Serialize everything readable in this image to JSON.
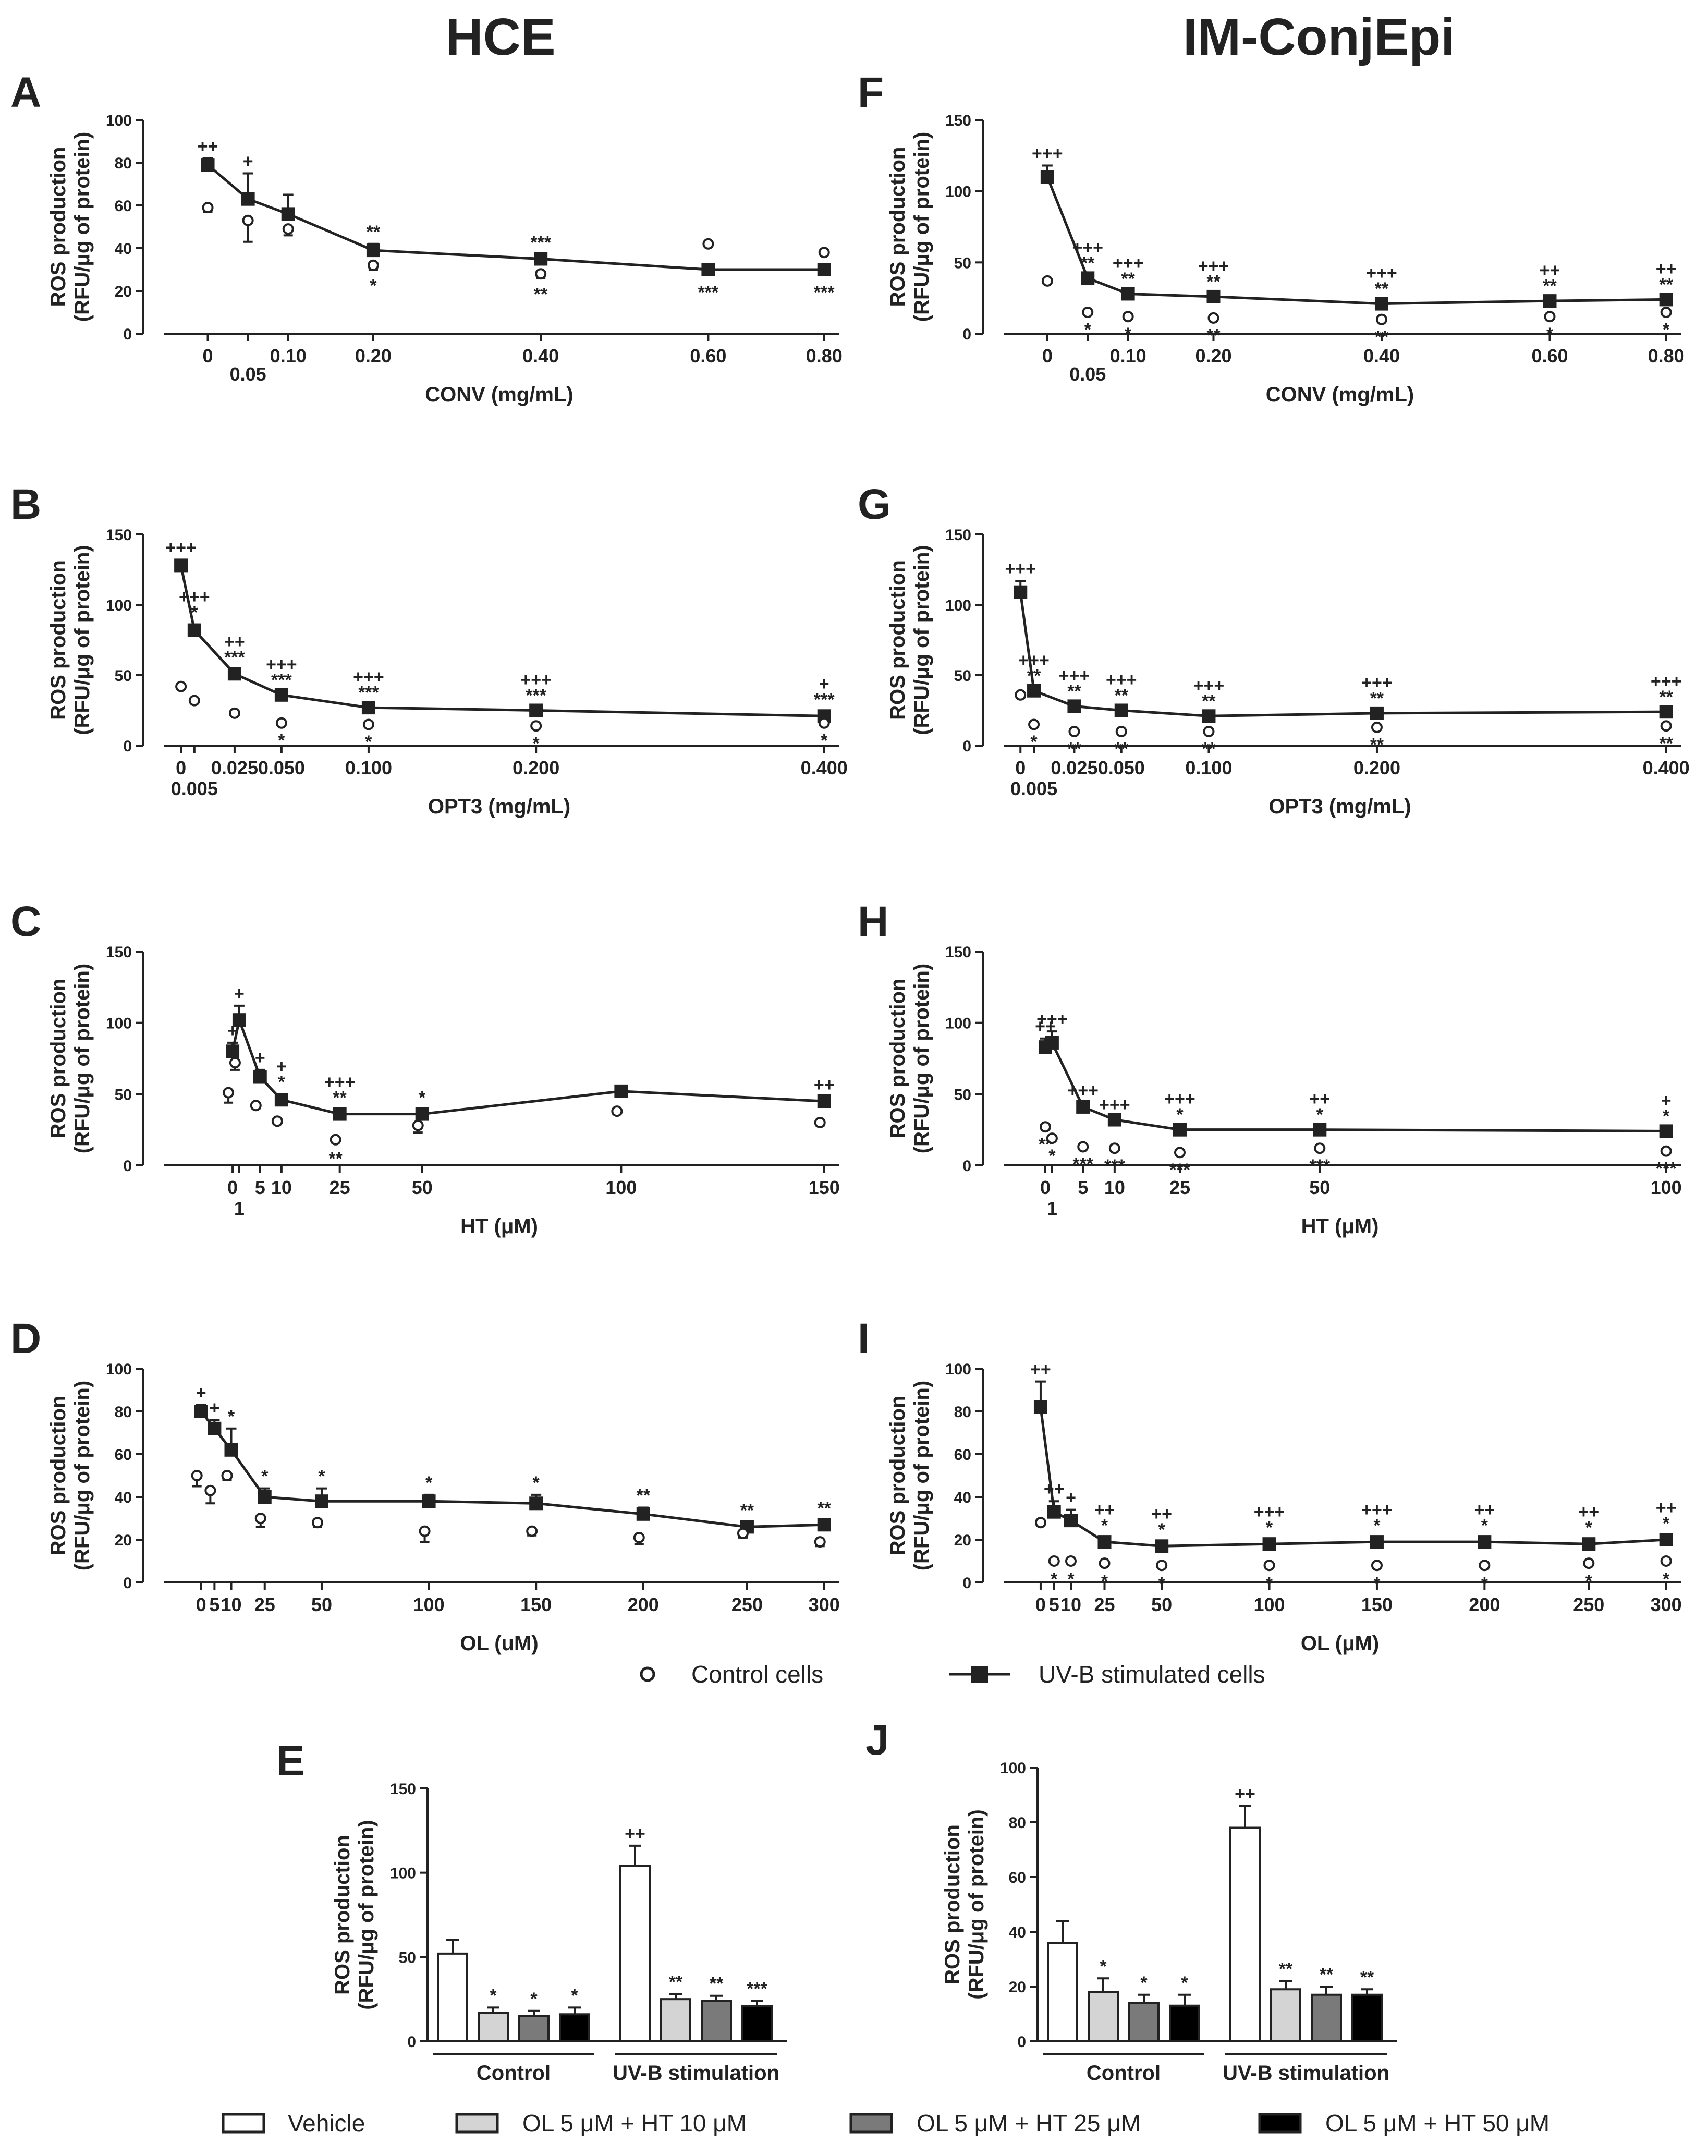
{
  "column_titles": {
    "left": "HCE",
    "right": "IM-ConjEpi"
  },
  "legend_points": {
    "control": "Control cells",
    "uvb": "UV-B stimulated cells"
  },
  "legend_bars": [
    "Vehicle",
    "OL 5 μM + HT 10 μM",
    "OL 5 μM + HT 25 μM",
    "OL 5 μM + HT 50 μM"
  ],
  "colors": {
    "vehicle": "#ffffff",
    "ht10": "#d4d4d4",
    "ht25": "#7a7a7a",
    "ht50": "#000000",
    "ink": "#222222"
  },
  "chart_data": [
    {
      "id": "A",
      "type": "line",
      "panel_label": "A",
      "ylabel": [
        "ROS production",
        "(RFU/μg of protein)"
      ],
      "xlabel": "CONV (mg/mL)",
      "ylim": [
        0,
        100
      ],
      "yticks": [
        0,
        20,
        40,
        60,
        80,
        100
      ],
      "x": [
        0,
        0.05,
        0.1,
        0.2,
        0.4,
        0.6,
        0.8
      ],
      "xtick_labels": [
        "0",
        "0.05",
        "0.10",
        "0.20",
        "0.40",
        "0.60",
        "0.80"
      ],
      "series": [
        {
          "name": "UV-B stimulated cells",
          "values": [
            79,
            63,
            56,
            39,
            35,
            30,
            30
          ],
          "errors": [
            3,
            12,
            9,
            3,
            2,
            1,
            1
          ],
          "above": [
            "++",
            "+",
            "",
            "**",
            "***",
            "",
            ""
          ],
          "below": [
            "",
            "",
            "",
            "",
            "",
            "***",
            "***"
          ]
        },
        {
          "name": "Control cells",
          "values": [
            59,
            53,
            49,
            32,
            28,
            42,
            38
          ],
          "errors": [
            2,
            10,
            3,
            2,
            2,
            1,
            1
          ],
          "below": [
            "",
            "",
            "",
            "*",
            "**",
            "",
            ""
          ]
        }
      ]
    },
    {
      "id": "F",
      "type": "line",
      "panel_label": "F",
      "ylabel": [
        "ROS production",
        "(RFU/μg of protein)"
      ],
      "xlabel": "CONV (mg/mL)",
      "ylim": [
        0,
        150
      ],
      "yticks": [
        0,
        50,
        100,
        150
      ],
      "x": [
        0,
        0.05,
        0.1,
        0.2,
        0.4,
        0.6,
        0.8
      ],
      "xtick_labels": [
        "0",
        "0.05",
        "0.10",
        "0.20",
        "0.40",
        "0.60",
        "0.80"
      ],
      "series": [
        {
          "name": "UV-B stimulated cells",
          "values": [
            110,
            39,
            28,
            26,
            21,
            23,
            24
          ],
          "errors": [
            8,
            2,
            2,
            2,
            2,
            2,
            2
          ],
          "above": [
            "+++",
            "+++\n**",
            "+++\n**",
            "+++\n**",
            "+++\n**",
            "++\n**",
            "++\n**"
          ]
        },
        {
          "name": "Control cells",
          "values": [
            37,
            15,
            12,
            11,
            10,
            12,
            15
          ],
          "errors": [
            2,
            1,
            1,
            1,
            1,
            1,
            1
          ],
          "below": [
            "",
            "*",
            "*",
            "**",
            "**",
            "*",
            "*"
          ]
        }
      ]
    },
    {
      "id": "B",
      "type": "line",
      "panel_label": "B",
      "ylabel": [
        "ROS production",
        "(RFU/μg of protein)"
      ],
      "xlabel": "OPT3 (mg/mL)",
      "ylim": [
        0,
        150
      ],
      "yticks": [
        0,
        50,
        100,
        150
      ],
      "x": [
        0,
        0.005,
        0.025,
        0.05,
        0.1,
        0.2,
        0.4
      ],
      "xtick_labels": [
        "0",
        "0.005",
        "0.025",
        "0.050",
        "0.100",
        "0.200",
        "0.400"
      ],
      "series": [
        {
          "name": "UV-B stimulated cells",
          "values": [
            128,
            82,
            51,
            36,
            27,
            25,
            21
          ],
          "errors": [
            4,
            4,
            3,
            2,
            2,
            2,
            3
          ],
          "above": [
            "+++",
            "+++\n*",
            "++\n***",
            "+++\n***",
            "+++\n***",
            "+++\n***",
            "+\n***"
          ]
        },
        {
          "name": "Control cells",
          "values": [
            42,
            32,
            23,
            16,
            15,
            14,
            16
          ],
          "errors": [
            1,
            1,
            1,
            1,
            1,
            1,
            1
          ],
          "below": [
            "",
            "",
            "",
            "*",
            "*",
            "*",
            "*"
          ]
        }
      ]
    },
    {
      "id": "G",
      "type": "line",
      "panel_label": "G",
      "ylabel": [
        "ROS production",
        "(RFU/μg of protein)"
      ],
      "xlabel": "OPT3 (mg/mL)",
      "ylim": [
        0,
        150
      ],
      "yticks": [
        0,
        50,
        100,
        150
      ],
      "x": [
        0,
        0.005,
        0.025,
        0.05,
        0.1,
        0.2,
        0.4
      ],
      "xtick_labels": [
        "0",
        "0.005",
        "0.025",
        "0.050",
        "0.100",
        "0.200",
        "0.400"
      ],
      "series": [
        {
          "name": "UV-B stimulated cells",
          "values": [
            109,
            39,
            28,
            25,
            21,
            23,
            24
          ],
          "errors": [
            8,
            2,
            2,
            2,
            2,
            2,
            2
          ],
          "above": [
            "+++",
            "+++\n**",
            "+++\n**",
            "+++\n**",
            "+++\n**",
            "+++\n**",
            "+++\n**"
          ]
        },
        {
          "name": "Control cells",
          "values": [
            36,
            15,
            10,
            10,
            10,
            13,
            14
          ],
          "errors": [
            2,
            1,
            1,
            1,
            1,
            1,
            1
          ],
          "below": [
            "",
            "*",
            "**",
            "**",
            "**",
            "**",
            "**"
          ]
        }
      ]
    },
    {
      "id": "C",
      "type": "line",
      "panel_label": "C",
      "ylabel": [
        "ROS production",
        "(RFU/μg of protein)"
      ],
      "xlabel": "HT (μM)",
      "ylim": [
        0,
        150
      ],
      "yticks": [
        0,
        50,
        100,
        150
      ],
      "x": [
        0,
        1,
        5,
        10,
        25,
        50,
        100,
        150
      ],
      "xtick_labels": [
        "0",
        "1",
        "5",
        "10",
        "25",
        "50",
        "100",
        "150"
      ],
      "series": [
        {
          "name": "UV-B stimulated cells",
          "values": [
            80,
            102,
            62,
            46,
            36,
            36,
            52,
            45
          ],
          "errors": [
            6,
            10,
            5,
            4,
            3,
            3,
            2,
            3
          ],
          "above": [
            "+",
            "+",
            "+",
            "+\n*",
            "+++\n**",
            "*",
            "",
            "++"
          ]
        },
        {
          "name": "Control cells",
          "values": [
            51,
            72,
            42,
            31,
            18,
            28,
            38,
            30
          ],
          "errors": [
            7,
            5,
            2,
            2,
            2,
            5,
            2,
            2
          ],
          "below": [
            "",
            "",
            "",
            "",
            "**",
            "",
            "",
            ""
          ]
        }
      ]
    },
    {
      "id": "H",
      "type": "line",
      "panel_label": "H",
      "ylabel": [
        "ROS production",
        "(RFU/μg of protein)"
      ],
      "xlabel": "HT (μM)",
      "ylim": [
        0,
        150
      ],
      "yticks": [
        0,
        50,
        100,
        150
      ],
      "x": [
        0,
        1,
        5,
        10,
        25,
        50,
        100
      ],
      "xtick_labels": [
        "0",
        "1",
        "5",
        "10",
        "25",
        "50",
        "100"
      ],
      "series": [
        {
          "name": "UV-B stimulated cells",
          "values": [
            83,
            86,
            41,
            32,
            25,
            25,
            24
          ],
          "errors": [
            6,
            8,
            3,
            2,
            2,
            2,
            2
          ],
          "above": [
            "++",
            "+++",
            "+++",
            "+++",
            "+++\n*",
            "++\n*",
            "+\n*"
          ]
        },
        {
          "name": "Control cells",
          "values": [
            27,
            19,
            13,
            12,
            9,
            12,
            10
          ],
          "errors": [
            1,
            1,
            1,
            1,
            1,
            1,
            1
          ],
          "below": [
            "**",
            "*",
            "***",
            "***",
            "***",
            "***",
            "***"
          ]
        }
      ]
    },
    {
      "id": "D",
      "type": "line",
      "panel_label": "D",
      "ylabel": [
        "ROS production",
        "(RFU/μg of protein)"
      ],
      "xlabel": "OL (uM)",
      "ylim": [
        0,
        100
      ],
      "yticks": [
        0,
        20,
        40,
        60,
        80,
        100
      ],
      "x": [
        0,
        5,
        10,
        25,
        50,
        100,
        150,
        200,
        250,
        300
      ],
      "xtick_labels": [
        "0",
        "5",
        "10",
        "25",
        "50",
        "100",
        "150",
        "200",
        "250",
        "300"
      ],
      "series": [
        {
          "name": "UV-B stimulated cells",
          "values": [
            80,
            72,
            62,
            40,
            38,
            38,
            37,
            32,
            26,
            27
          ],
          "errors": [
            3,
            4,
            10,
            4,
            6,
            3,
            4,
            3,
            2,
            2
          ],
          "above": [
            "+",
            "+",
            "*",
            "*",
            "*",
            "*",
            "*",
            "**",
            "**",
            "**"
          ]
        },
        {
          "name": "Control cells",
          "values": [
            50,
            43,
            50,
            30,
            28,
            24,
            24,
            21,
            23,
            19
          ],
          "errors": [
            5,
            6,
            2,
            4,
            2,
            5,
            2,
            3,
            2,
            2
          ]
        }
      ]
    },
    {
      "id": "I",
      "type": "line",
      "panel_label": "I",
      "ylabel": [
        "ROS production",
        "(RFU/μg of protein)"
      ],
      "xlabel": "OL (μM)",
      "ylim": [
        0,
        100
      ],
      "yticks": [
        0,
        20,
        40,
        60,
        80,
        100
      ],
      "x": [
        0,
        5,
        10,
        25,
        50,
        100,
        150,
        200,
        250,
        300
      ],
      "xtick_labels": [
        "0",
        "5",
        "10",
        "25",
        "50",
        "100",
        "150",
        "200",
        "250",
        "300"
      ],
      "series": [
        {
          "name": "UV-B stimulated cells",
          "values": [
            82,
            33,
            29,
            19,
            17,
            18,
            19,
            19,
            18,
            20
          ],
          "errors": [
            12,
            5,
            5,
            2,
            2,
            2,
            2,
            2,
            2,
            2
          ],
          "above": [
            "++",
            "++",
            "+",
            "++\n*",
            "++\n*",
            "+++\n*",
            "+++\n*",
            "++\n*",
            "++\n*",
            "++\n*"
          ]
        },
        {
          "name": "Control cells",
          "values": [
            28,
            10,
            10,
            9,
            8,
            8,
            8,
            8,
            9,
            10
          ],
          "errors": [
            1,
            1,
            1,
            1,
            1,
            1,
            1,
            1,
            1,
            1
          ],
          "below": [
            "",
            "*",
            "*",
            "*",
            "*",
            "*",
            "*",
            "*",
            "*",
            "*"
          ]
        }
      ]
    },
    {
      "id": "E",
      "type": "bar",
      "panel_label": "E",
      "ylabel": [
        "ROS production",
        "(RFU/μg of protein)"
      ],
      "ylim": [
        0,
        150
      ],
      "yticks": [
        0,
        50,
        100,
        150
      ],
      "groups": [
        "Control",
        "UV-B stimulation"
      ],
      "series": [
        {
          "name": "Vehicle",
          "values": [
            52,
            104
          ],
          "errors": [
            8,
            12
          ],
          "marks": [
            "",
            "++"
          ]
        },
        {
          "name": "OL 5 μM + HT 10 μM",
          "values": [
            17,
            25
          ],
          "errors": [
            3,
            3
          ],
          "marks": [
            "*",
            "**"
          ]
        },
        {
          "name": "OL 5 μM + HT 25 μM",
          "values": [
            15,
            24
          ],
          "errors": [
            3,
            3
          ],
          "marks": [
            "*",
            "**"
          ]
        },
        {
          "name": "OL 5 μM + HT 50 μM",
          "values": [
            16,
            21
          ],
          "errors": [
            4,
            3
          ],
          "marks": [
            "*",
            "***"
          ]
        }
      ]
    },
    {
      "id": "J",
      "type": "bar",
      "panel_label": "J",
      "ylabel": [
        "ROS production",
        "(RFU/μg of protein)"
      ],
      "ylim": [
        0,
        100
      ],
      "yticks": [
        0,
        20,
        40,
        60,
        80,
        100
      ],
      "groups": [
        "Control",
        "UV-B stimulation"
      ],
      "series": [
        {
          "name": "Vehicle",
          "values": [
            36,
            78
          ],
          "errors": [
            8,
            8
          ],
          "marks": [
            "",
            "++"
          ]
        },
        {
          "name": "OL 5 μM + HT 10 μM",
          "values": [
            18,
            19
          ],
          "errors": [
            5,
            3
          ],
          "marks": [
            "*",
            "**"
          ]
        },
        {
          "name": "OL 5 μM + HT 25 μM",
          "values": [
            14,
            17
          ],
          "errors": [
            3,
            3
          ],
          "marks": [
            "*",
            "**"
          ]
        },
        {
          "name": "OL 5 μM + HT 50 μM",
          "values": [
            13,
            17
          ],
          "errors": [
            4,
            2
          ],
          "marks": [
            "*",
            "**"
          ]
        }
      ]
    }
  ]
}
